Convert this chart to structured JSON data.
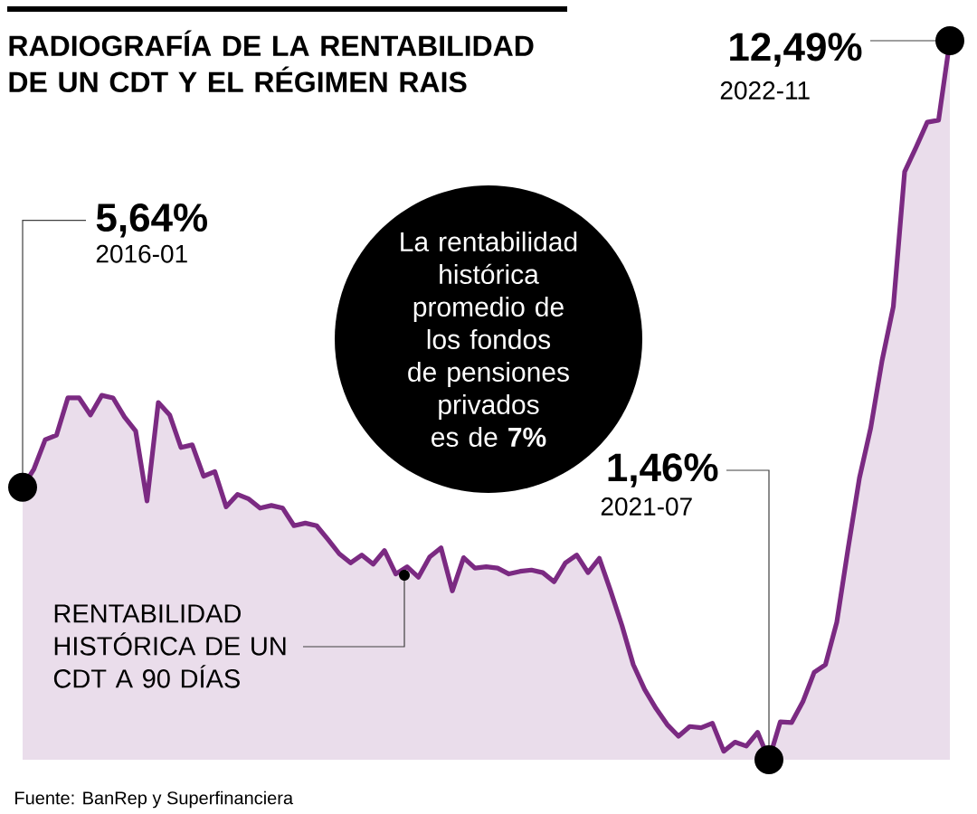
{
  "chart_data": {
    "type": "area",
    "title": "RADIOGRAFÍA DE LA RENTABILIDAD DE UN CDT Y EL RÉGIMEN RAIS",
    "tick_labels": false,
    "categories": [
      null,
      null,
      null,
      null,
      null,
      null,
      null,
      null,
      null,
      null,
      null,
      null,
      null,
      null,
      null,
      null,
      null,
      null,
      null,
      null,
      null,
      null,
      null,
      null,
      null,
      null,
      null,
      null,
      null,
      null,
      null,
      null,
      null,
      null,
      null,
      null,
      null,
      null,
      null,
      null,
      null,
      null,
      null,
      null,
      null,
      null,
      null,
      null,
      null,
      null,
      null,
      null,
      null,
      null,
      null,
      null,
      null,
      null,
      null,
      null,
      null,
      null,
      null,
      null,
      null,
      null,
      null,
      null,
      null,
      null,
      null,
      null,
      null,
      null,
      null,
      null,
      null,
      null,
      null,
      null,
      null,
      null,
      null
    ],
    "series": [
      {
        "color": "#7b2a82",
        "values": [
          5.64,
          5.92,
          6.37,
          6.44,
          7.01,
          7.01,
          6.75,
          7.05,
          7.01,
          6.72,
          6.5,
          5.43,
          6.94,
          6.75,
          6.25,
          6.29,
          5.81,
          5.88,
          5.34,
          5.53,
          5.46,
          5.32,
          5.36,
          5.32,
          5.05,
          5.09,
          5.05,
          4.84,
          4.62,
          4.48,
          4.6,
          4.46,
          4.67,
          4.31,
          4.42,
          4.26,
          4.57,
          4.71,
          4.05,
          4.56,
          4.4,
          4.42,
          4.4,
          4.31,
          4.35,
          4.37,
          4.33,
          4.19,
          4.48,
          4.6,
          4.33,
          4.55,
          4.05,
          3.52,
          2.92,
          2.54,
          2.25,
          2.0,
          1.82,
          1.97,
          1.95,
          2.02,
          1.59,
          1.73,
          1.67,
          1.88,
          1.46,
          2.04,
          2.03,
          2.35,
          2.8,
          2.92,
          3.57,
          4.7,
          5.78,
          6.55,
          7.58,
          8.41,
          10.48,
          10.85,
          11.24,
          11.27,
          12.49
        ],
        "value_labels": [
          "5,64%",
          null,
          null,
          null,
          null,
          null,
          null,
          null,
          null,
          null,
          null,
          null,
          null,
          null,
          null,
          null,
          null,
          null,
          null,
          null,
          null,
          null,
          null,
          null,
          null,
          null,
          null,
          null,
          null,
          null,
          null,
          null,
          null,
          null,
          null,
          null,
          null,
          null,
          null,
          null,
          null,
          null,
          null,
          null,
          null,
          null,
          null,
          null,
          null,
          null,
          null,
          null,
          null,
          null,
          null,
          null,
          null,
          null,
          null,
          null,
          null,
          null,
          null,
          null,
          null,
          null,
          "1,46%",
          null,
          null,
          null,
          null,
          null,
          null,
          null,
          null,
          null,
          null,
          null,
          null,
          null,
          null,
          null,
          "12,49%"
        ]
      }
    ],
    "annotations": [
      "2016-01",
      "2021-07",
      "2022-11",
      "RENTABILIDAD HISTÓRICA DE UN CDT A 90 DÍAS",
      "La rentabilidad histórica promedio de los fondos de pensiones privados es de **7%**",
      "Fuente:  BanRep y Superfinanciera"
    ]
  }
}
